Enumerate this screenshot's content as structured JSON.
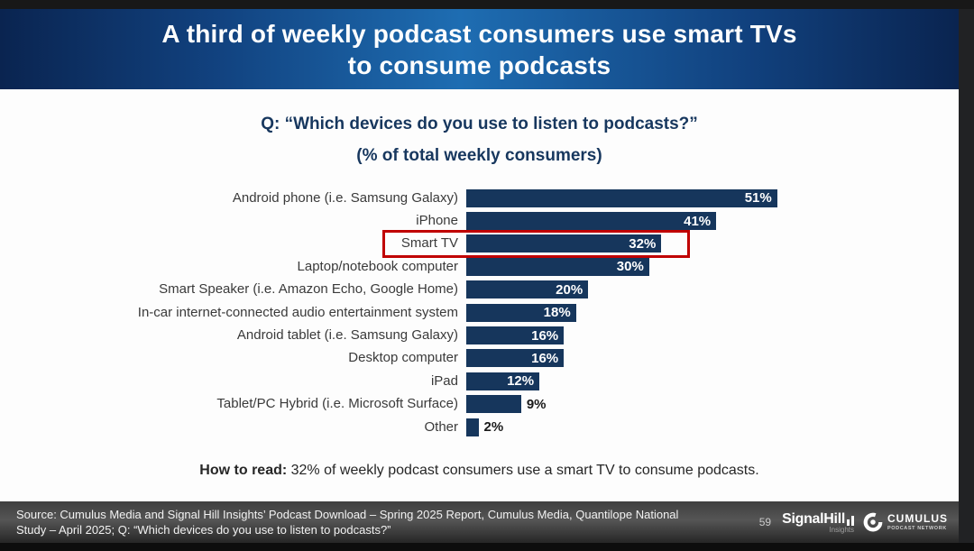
{
  "header": {
    "title_line1": "A third of weekly podcast consumers use smart TVs",
    "title_line2": "to consume podcasts"
  },
  "question": {
    "line1": "Q: “Which devices do you use to listen to podcasts?”",
    "line2": "(% of total weekly consumers)"
  },
  "chart_data": {
    "type": "bar",
    "orientation": "horizontal",
    "title": "Q: “Which devices do you use to listen to podcasts?” (% of total weekly consumers)",
    "categories": [
      "Android phone (i.e. Samsung Galaxy)",
      "iPhone",
      "Smart TV",
      "Laptop/notebook computer",
      "Smart Speaker (i.e. Amazon Echo, Google Home)",
      "In-car internet-connected audio entertainment system",
      "Android tablet (i.e. Samsung Galaxy)",
      "Desktop computer",
      "iPad",
      "Tablet/PC Hybrid (i.e. Microsoft Surface)",
      "Other"
    ],
    "values": [
      51,
      41,
      32,
      30,
      20,
      18,
      16,
      16,
      12,
      9,
      2
    ],
    "unit": "%",
    "xlim": [
      0,
      53
    ],
    "grid": false,
    "legend": false,
    "bar_color": "#16365c",
    "value_label_color_inside": "#ffffff",
    "value_label_color_outside": "#1a1a1a",
    "highlight": {
      "category": "Smart TV",
      "box_color": "#c00000"
    }
  },
  "how_to_read": {
    "label": "How to read:",
    "text": " 32% of weekly podcast consumers use a smart TV to consume podcasts."
  },
  "footer": {
    "source_line1": "Source: Cumulus Media and Signal Hill Insights’ Podcast Download – Spring 2025 Report, Cumulus Media, Quantilope National",
    "source_line2": "Study – April 2025; Q: “Which devices do you use to listen to podcasts?”",
    "page_number": "59",
    "signal_hill": {
      "name": "SignalHill",
      "sub": "Insights"
    },
    "cumulus": {
      "name": "CUMULUS",
      "sub": "PODCAST NETWORK"
    }
  }
}
